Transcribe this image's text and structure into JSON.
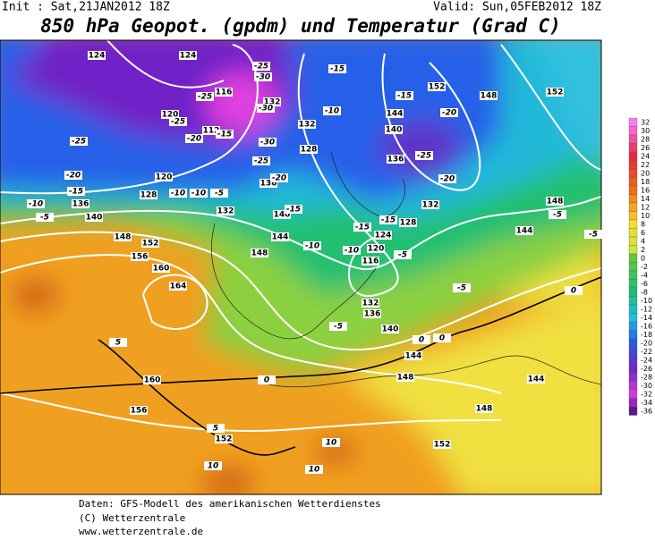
{
  "header": {
    "init": "Init : Sat,21JAN2012 18Z",
    "valid": "Valid: Sun,05FEB2012 18Z",
    "title": "850 hPa Geopot. (gpdm) und Temperatur (Grad C)"
  },
  "colorbar": {
    "ticks": [
      32,
      30,
      28,
      26,
      24,
      22,
      20,
      18,
      16,
      14,
      12,
      10,
      8,
      6,
      4,
      2,
      0,
      -2,
      -4,
      -6,
      -8,
      -10,
      -12,
      -14,
      -16,
      -18,
      -20,
      -22,
      -24,
      -26,
      -28,
      -30,
      -32,
      -34,
      -36
    ]
  },
  "contour_labels": {
    "geopotential": [
      124,
      124,
      116,
      120,
      112,
      132,
      128,
      132,
      136,
      140,
      144,
      148,
      132,
      128,
      120,
      136,
      140,
      148,
      152,
      156,
      160,
      164,
      160,
      156,
      152,
      152,
      148,
      144,
      148,
      144,
      140,
      136,
      132,
      116,
      120,
      124,
      128,
      132,
      136,
      140,
      144,
      148,
      152,
      152,
      148,
      144
    ],
    "temperature": [
      -25,
      -30,
      -25,
      -30,
      -25,
      -20,
      -15,
      -10,
      -5,
      -25,
      -20,
      -15,
      -10,
      -10,
      -5,
      -30,
      -25,
      -20,
      -15,
      -10,
      -5,
      -15,
      -10,
      -15,
      -20,
      -25,
      -20,
      -15,
      -15,
      -10,
      -5,
      -5,
      0,
      -5,
      -5,
      0,
      5,
      5,
      10,
      10,
      10,
      0,
      0
    ]
  },
  "footer": {
    "line1": "Daten: GFS-Modell des amerikanischen Wetterdienstes",
    "line2": "(C) Wetterzentrale",
    "line3": "www.wetterzentrale.de"
  }
}
